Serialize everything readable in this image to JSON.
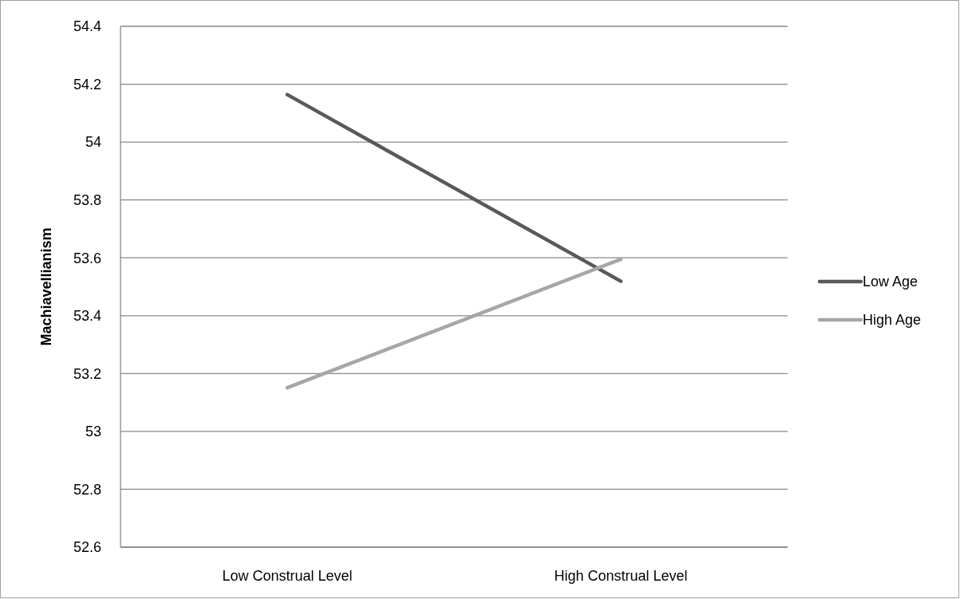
{
  "chart_data": {
    "type": "line",
    "ylabel": "Machiavellianism",
    "categories": [
      "Low Construal Level",
      "High Construal Level"
    ],
    "series": [
      {
        "name": "Low Age",
        "color": "#595959",
        "values": [
          54.164,
          53.519
        ]
      },
      {
        "name": "High Age",
        "color": "#a6a6a6",
        "values": [
          53.151,
          53.595
        ]
      }
    ],
    "ylim": [
      52.6,
      54.4
    ],
    "yticks": [
      52.6,
      52.8,
      53,
      53.2,
      53.4,
      53.6,
      53.8,
      54,
      54.2,
      54.4
    ],
    "grid": "y",
    "legend": "right",
    "marker": "none",
    "line_style": "solid"
  }
}
